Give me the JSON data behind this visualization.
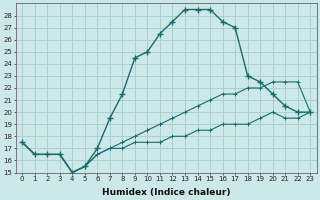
{
  "xlabel": "Humidex (Indice chaleur)",
  "background_color": "#cce8e8",
  "grid_color": "#aacece",
  "line_color": "#1a6b6b",
  "xlim": [
    -0.5,
    23.5
  ],
  "ylim": [
    15,
    29
  ],
  "yticks": [
    15,
    16,
    17,
    18,
    19,
    20,
    21,
    22,
    23,
    24,
    25,
    26,
    27,
    28
  ],
  "xticks": [
    0,
    1,
    2,
    3,
    4,
    5,
    6,
    7,
    8,
    9,
    10,
    11,
    12,
    13,
    14,
    15,
    16,
    17,
    18,
    19,
    20,
    21,
    22,
    23
  ],
  "main_line": [
    17.5,
    16.5,
    16.5,
    16.5,
    15.0,
    15.5,
    17.0,
    19.5,
    21.5,
    24.5,
    25.0,
    26.5,
    27.5,
    28.5,
    28.5,
    28.5,
    27.5,
    27.0,
    23.0,
    22.5,
    21.5,
    20.5,
    20.0,
    20.0
  ],
  "line2": [
    17.5,
    16.5,
    16.5,
    16.5,
    15.0,
    15.5,
    16.5,
    17.0,
    17.0,
    17.5,
    17.5,
    17.5,
    18.0,
    18.0,
    18.5,
    18.5,
    19.0,
    19.0,
    19.0,
    19.5,
    20.0,
    19.5,
    19.5,
    20.0
  ],
  "line3": [
    17.5,
    16.5,
    16.5,
    16.5,
    15.0,
    15.5,
    16.5,
    17.0,
    17.5,
    18.0,
    18.5,
    19.0,
    19.5,
    20.0,
    20.5,
    21.0,
    21.5,
    21.5,
    22.0,
    22.0,
    22.5,
    22.5,
    22.5,
    20.0
  ]
}
